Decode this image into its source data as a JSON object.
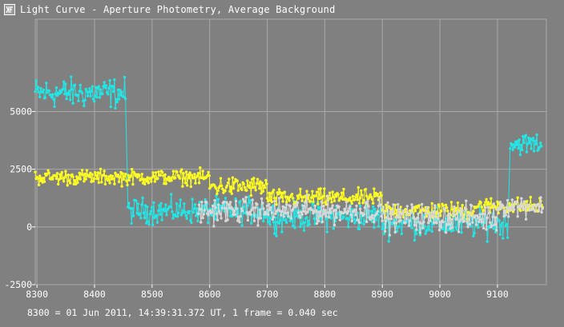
{
  "window": {
    "title": "Light Curve - Aperture Photometry, Average Background",
    "icon": "light-curve-app-icon"
  },
  "footer": {
    "text": "8300 = 01 Jun 2011, 14:39:31.372 UT, 1 frame = 0.040 sec"
  },
  "colors": {
    "background": "#808080",
    "grid": "#a8a8a8",
    "text": "#ffffff",
    "series_cyan": "#22e6e6",
    "series_yellow": "#ffff22",
    "series_white": "#d8d8d8"
  },
  "chart_data": {
    "type": "line",
    "xlim": [
      8297,
      9185
    ],
    "ylim": [
      -2500,
      9000
    ],
    "x_ticks": [
      8300,
      8400,
      8500,
      8600,
      8700,
      8800,
      8900,
      9000,
      9100
    ],
    "y_ticks": [
      -2500,
      0,
      2500,
      5000
    ],
    "grid": true,
    "series": [
      {
        "color": "#22e6e6",
        "segments": [
          {
            "x0": 8297,
            "x1": 8455,
            "mean": 5800,
            "noise": 450
          },
          {
            "x0": 8458,
            "x1": 8700,
            "mean": 700,
            "noise": 380
          },
          {
            "x0": 8700,
            "x1": 8900,
            "mean": 450,
            "noise": 420
          },
          {
            "x0": 8900,
            "x1": 9118,
            "mean": 150,
            "noise": 430
          },
          {
            "x0": 9122,
            "x1": 9178,
            "mean": 3600,
            "noise": 320
          }
        ]
      },
      {
        "color": "#ffff22",
        "segments": [
          {
            "x0": 8297,
            "x1": 8600,
            "mean": 2150,
            "noise": 230
          },
          {
            "x0": 8600,
            "x1": 8700,
            "mean": 1750,
            "noise": 300
          },
          {
            "x0": 8700,
            "x1": 8900,
            "mean": 1250,
            "noise": 260
          },
          {
            "x0": 8900,
            "x1": 9060,
            "mean": 700,
            "noise": 260
          },
          {
            "x0": 9060,
            "x1": 9180,
            "mean": 900,
            "noise": 260
          }
        ]
      },
      {
        "color": "#d8d8d8",
        "segments": [
          {
            "x0": 8580,
            "x1": 8900,
            "mean": 700,
            "noise": 380
          },
          {
            "x0": 8900,
            "x1": 9100,
            "mean": 400,
            "noise": 420
          },
          {
            "x0": 9100,
            "x1": 9180,
            "mean": 900,
            "noise": 320
          }
        ]
      }
    ]
  }
}
